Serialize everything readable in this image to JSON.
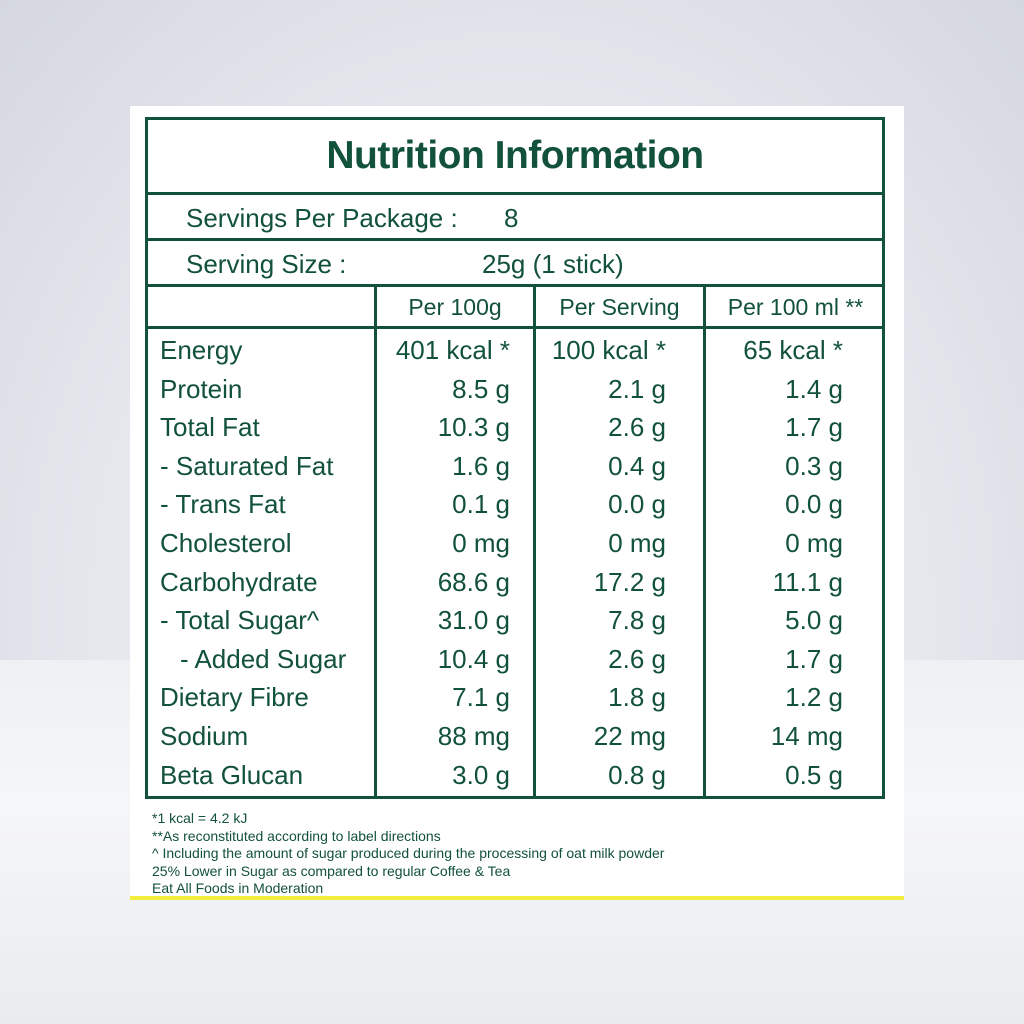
{
  "label": {
    "title": "Nutrition Information",
    "servings_per_package_label": "Servings Per Package :",
    "servings_per_package_value": "8",
    "serving_size_label": "Serving Size :",
    "serving_size_value": "25g (1 stick)",
    "columns": [
      "Per 100g",
      "Per Serving",
      "Per 100 ml **"
    ],
    "rows": [
      {
        "name": "Energy",
        "per100g": "401 kcal *",
        "perServing": "100 kcal *",
        "per100ml": "65 kcal *"
      },
      {
        "name": "Protein",
        "per100g": "8.5 g",
        "perServing": "2.1 g",
        "per100ml": "1.4 g"
      },
      {
        "name": "Total Fat",
        "per100g": "10.3 g",
        "perServing": "2.6 g",
        "per100ml": "1.7 g"
      },
      {
        "name": "- Saturated Fat",
        "per100g": "1.6 g",
        "perServing": "0.4 g",
        "per100ml": "0.3 g"
      },
      {
        "name": "- Trans Fat",
        "per100g": "0.1 g",
        "perServing": "0.0 g",
        "per100ml": "0.0 g"
      },
      {
        "name": "Cholesterol",
        "per100g": "0 mg",
        "perServing": "0 mg",
        "per100ml": "0 mg"
      },
      {
        "name": "Carbohydrate",
        "per100g": "68.6 g",
        "perServing": "17.2 g",
        "per100ml": "11.1 g"
      },
      {
        "name": "- Total Sugar^",
        "per100g": "31.0 g",
        "perServing": "7.8 g",
        "per100ml": "5.0 g"
      },
      {
        "name": "- Added Sugar",
        "per100g": "10.4 g",
        "perServing": "2.6 g",
        "per100ml": "1.7 g"
      },
      {
        "name": "Dietary Fibre",
        "per100g": "7.1 g",
        "perServing": "1.8 g",
        "per100ml": "1.2 g"
      },
      {
        "name": "Sodium",
        "per100g": "88 mg",
        "perServing": "22 mg",
        "per100ml": "14 mg"
      },
      {
        "name": "Beta Glucan",
        "per100g": "3.0 g",
        "perServing": "0.8 g",
        "per100ml": "0.5 g"
      }
    ],
    "footnotes": [
      "*1 kcal = 4.2 kJ",
      "**As reconstituted according to label directions",
      "^ Including the amount of sugar produced during the processing of oat milk powder",
      "25% Lower in Sugar as compared to regular Coffee & Tea",
      "Eat All Foods in Moderation"
    ]
  },
  "colors": {
    "brand_green": "#12513a",
    "accent_yellow": "#f2ee3c"
  }
}
